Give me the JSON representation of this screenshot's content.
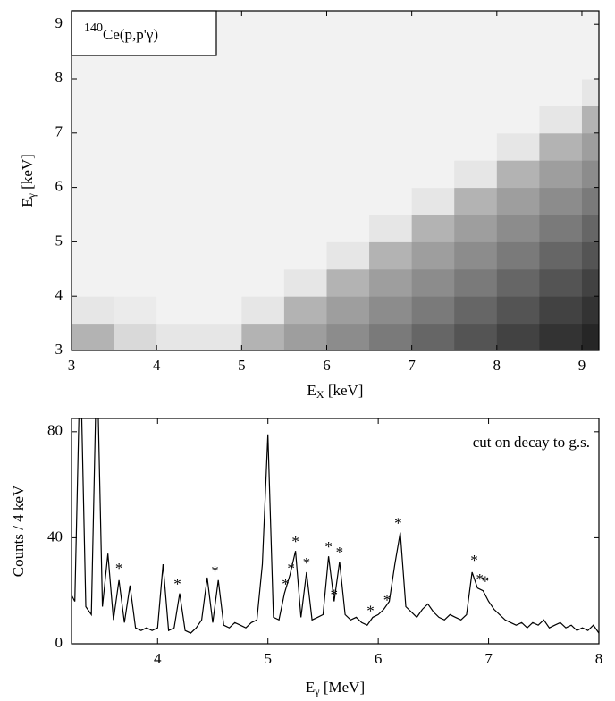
{
  "chart_data": [
    {
      "type": "heatmap",
      "label_mass": "140",
      "label": "Ce(p,p'γ)",
      "xlabel": "E",
      "xlabel_sub": "X",
      "xlabel_rest": " [keV]",
      "ylabel": "E",
      "ylabel_sub": "γ",
      "ylabel_rest": " [keV]",
      "xbins": [
        3,
        3.5,
        4,
        4.5,
        5,
        5.5,
        6,
        6.5,
        7,
        7.5,
        8,
        8.5,
        9,
        9.5
      ],
      "ybins": [
        3,
        3.5,
        4,
        4.5,
        5,
        5.5,
        6,
        6.5,
        7,
        7.5,
        8,
        8.5,
        9,
        9.5
      ],
      "z": [
        [
          0.3,
          0.15,
          0.1,
          0.1,
          0.3,
          0.38,
          0.45,
          0.52,
          0.6,
          0.67,
          0.74,
          0.8,
          0.85
        ],
        [
          0.1,
          0.08,
          0.05,
          0.05,
          0.1,
          0.3,
          0.38,
          0.45,
          0.52,
          0.6,
          0.67,
          0.74,
          0.8
        ],
        [
          0.05,
          0.05,
          0.05,
          0.05,
          0.05,
          0.1,
          0.3,
          0.38,
          0.45,
          0.52,
          0.6,
          0.67,
          0.74
        ],
        [
          0.05,
          0.05,
          0.05,
          0.05,
          0.05,
          0.05,
          0.1,
          0.3,
          0.38,
          0.45,
          0.52,
          0.6,
          0.67
        ],
        [
          0.05,
          0.05,
          0.05,
          0.05,
          0.05,
          0.05,
          0.05,
          0.1,
          0.3,
          0.38,
          0.45,
          0.52,
          0.6
        ],
        [
          0.05,
          0.05,
          0.05,
          0.05,
          0.05,
          0.05,
          0.05,
          0.05,
          0.1,
          0.3,
          0.38,
          0.45,
          0.52
        ],
        [
          0.05,
          0.05,
          0.05,
          0.05,
          0.05,
          0.05,
          0.05,
          0.05,
          0.05,
          0.1,
          0.3,
          0.38,
          0.45
        ],
        [
          0.05,
          0.05,
          0.05,
          0.05,
          0.05,
          0.05,
          0.05,
          0.05,
          0.05,
          0.05,
          0.1,
          0.3,
          0.38
        ],
        [
          0.05,
          0.05,
          0.05,
          0.05,
          0.05,
          0.05,
          0.05,
          0.05,
          0.05,
          0.05,
          0.05,
          0.1,
          0.3
        ],
        [
          0.05,
          0.05,
          0.05,
          0.05,
          0.05,
          0.05,
          0.05,
          0.05,
          0.05,
          0.05,
          0.05,
          0.05,
          0.1
        ],
        [
          0.05,
          0.05,
          0.05,
          0.05,
          0.05,
          0.05,
          0.05,
          0.05,
          0.05,
          0.05,
          0.05,
          0.05,
          0.05
        ],
        [
          0.05,
          0.05,
          0.05,
          0.05,
          0.05,
          0.05,
          0.05,
          0.05,
          0.05,
          0.05,
          0.05,
          0.05,
          0.05
        ],
        [
          0.05,
          0.05,
          0.05,
          0.05,
          0.05,
          0.05,
          0.05,
          0.05,
          0.05,
          0.05,
          0.05,
          0.05,
          0.05
        ]
      ],
      "xlim": [
        3,
        9.2
      ],
      "ylim": [
        3,
        9.25
      ],
      "xticks": [
        3,
        4,
        5,
        6,
        7,
        8,
        9
      ],
      "yticks": [
        3,
        4,
        5,
        6,
        7,
        8,
        9
      ]
    },
    {
      "type": "line",
      "annotation": "cut on decay to g.s.",
      "xlabel": "E",
      "xlabel_sub": "γ",
      "xlabel_rest": " [MeV]",
      "ylabel": "Counts / 4 keV",
      "color": "#000000",
      "x": [
        3.2,
        3.25,
        3.3,
        3.35,
        3.4,
        3.45,
        3.5,
        3.55,
        3.6,
        3.65,
        3.7,
        3.75,
        3.8,
        3.85,
        3.9,
        3.95,
        4.0,
        4.05,
        4.1,
        4.15,
        4.2,
        4.25,
        4.3,
        4.35,
        4.4,
        4.45,
        4.5,
        4.55,
        4.6,
        4.65,
        4.7,
        4.75,
        4.8,
        4.85,
        4.9,
        4.95,
        5.0,
        5.05,
        5.1,
        5.15,
        5.2,
        5.25,
        5.3,
        5.35,
        5.4,
        5.45,
        5.5,
        5.55,
        5.6,
        5.65,
        5.7,
        5.75,
        5.8,
        5.85,
        5.9,
        5.95,
        6.0,
        6.05,
        6.1,
        6.15,
        6.2,
        6.25,
        6.3,
        6.35,
        6.4,
        6.45,
        6.5,
        6.55,
        6.6,
        6.65,
        6.7,
        6.75,
        6.8,
        6.85,
        6.9,
        6.95,
        7.0,
        7.05,
        7.1,
        7.15,
        7.2,
        7.25,
        7.3,
        7.35,
        7.4,
        7.45,
        7.5,
        7.55,
        7.6,
        7.65,
        7.7,
        7.75,
        7.8,
        7.85,
        7.9,
        7.95,
        8.0
      ],
      "values": [
        20,
        16,
        110,
        14,
        11,
        110,
        14,
        34,
        9,
        24,
        8,
        22,
        6,
        5,
        6,
        5,
        6,
        30,
        5,
        6,
        19,
        5,
        4,
        6,
        9,
        25,
        8,
        24,
        7,
        6,
        8,
        7,
        6,
        8,
        9,
        30,
        79,
        10,
        9,
        19,
        26,
        35,
        10,
        27,
        9,
        10,
        11,
        33,
        16,
        31,
        11,
        9,
        10,
        8,
        7,
        10,
        11,
        13,
        16,
        30,
        42,
        14,
        12,
        10,
        13,
        15,
        12,
        10,
        9,
        11,
        10,
        9,
        11,
        27,
        21,
        20,
        16,
        13,
        11,
        9,
        8,
        7,
        8,
        6,
        8,
        7,
        9,
        6,
        7,
        8,
        6,
        7,
        5,
        6,
        5,
        7,
        4
      ],
      "markers": [
        {
          "x": 3.65,
          "y": 28,
          "text": "*"
        },
        {
          "x": 4.18,
          "y": 22,
          "text": "*"
        },
        {
          "x": 4.52,
          "y": 27,
          "text": "*"
        },
        {
          "x": 5.16,
          "y": 22,
          "text": "*"
        },
        {
          "x": 5.21,
          "y": 28,
          "text": "*"
        },
        {
          "x": 5.25,
          "y": 38,
          "text": "*"
        },
        {
          "x": 5.35,
          "y": 30,
          "text": "*"
        },
        {
          "x": 5.55,
          "y": 36,
          "text": "*"
        },
        {
          "x": 5.6,
          "y": 18,
          "text": "*"
        },
        {
          "x": 5.65,
          "y": 34,
          "text": "*"
        },
        {
          "x": 5.93,
          "y": 12,
          "text": "*"
        },
        {
          "x": 6.08,
          "y": 16,
          "text": "*"
        },
        {
          "x": 6.18,
          "y": 45,
          "text": "*"
        },
        {
          "x": 6.87,
          "y": 31,
          "text": "*"
        },
        {
          "x": 6.92,
          "y": 24,
          "text": "*"
        },
        {
          "x": 6.97,
          "y": 23,
          "text": "*"
        }
      ],
      "xlim": [
        3.22,
        8
      ],
      "ylim": [
        0,
        85
      ],
      "xticks": [
        4,
        5,
        6,
        7,
        8
      ],
      "yticks": [
        0,
        40,
        80
      ]
    }
  ]
}
